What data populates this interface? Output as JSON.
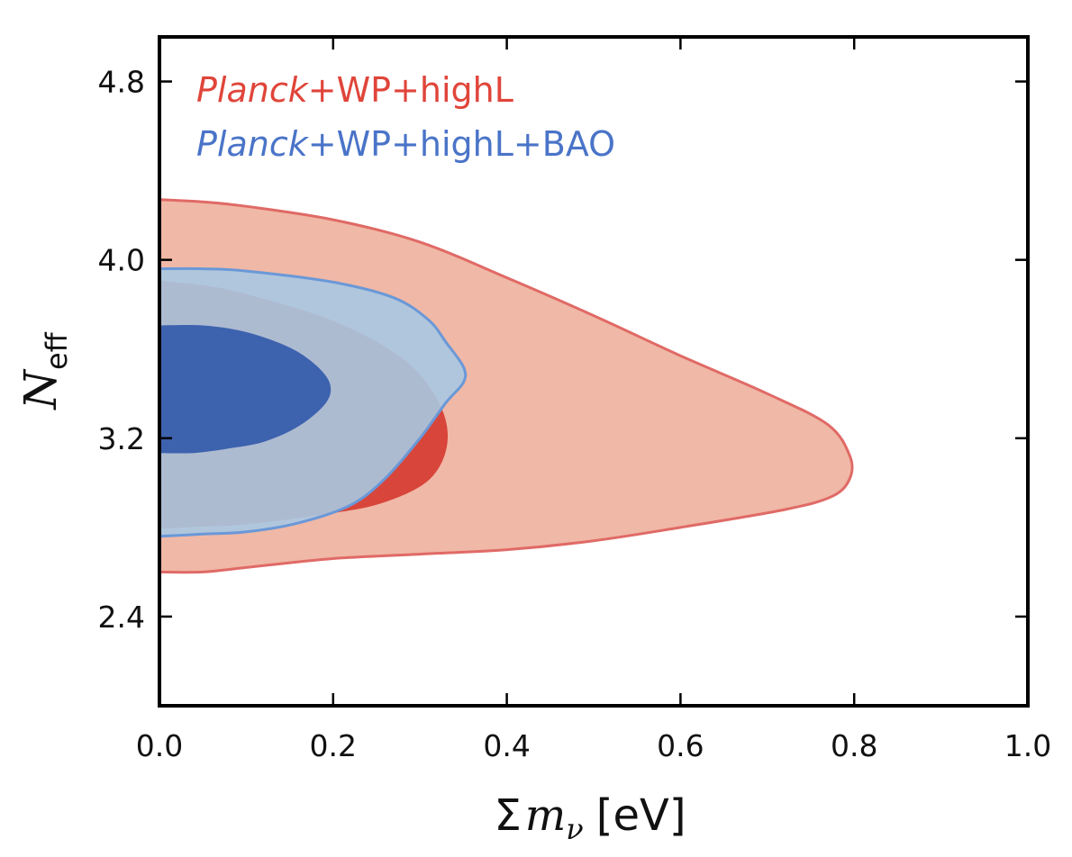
{
  "chart_data": {
    "type": "contour",
    "xlim": [
      0.0,
      1.0
    ],
    "ylim": [
      2.0,
      5.0
    ],
    "xticks": [
      0.0,
      0.2,
      0.4,
      0.6,
      0.8,
      1.0
    ],
    "xtick_labels": [
      "0.0",
      "0.2",
      "0.4",
      "0.6",
      "0.8",
      "1.0"
    ],
    "yticks": [
      2.4,
      3.2,
      4.0,
      4.8
    ],
    "ytick_labels": [
      "2.4",
      "3.2",
      "4.0",
      "4.8"
    ],
    "xlabel": {
      "symbol": "Σ",
      "variable": "m",
      "subscript": "ν",
      "unit": "[eV]"
    },
    "ylabel": {
      "variable": "N",
      "subscript": "eff"
    },
    "legend_position": "top-left",
    "grid": false,
    "series": [
      {
        "name": "Planck+WP+highL",
        "name_italic": "Planck",
        "name_rest": "+WP+highL",
        "legend_color": "#e0453a",
        "contours": [
          {
            "level": "95%",
            "fill": "#f0b8a6",
            "stroke": "#e06a66",
            "points": [
              [
                0.0,
                4.27
              ],
              [
                0.05,
                4.26
              ],
              [
                0.1,
                4.24
              ],
              [
                0.2,
                4.18
              ],
              [
                0.3,
                4.08
              ],
              [
                0.4,
                3.92
              ],
              [
                0.5,
                3.75
              ],
              [
                0.6,
                3.57
              ],
              [
                0.7,
                3.4
              ],
              [
                0.77,
                3.26
              ],
              [
                0.795,
                3.12
              ],
              [
                0.795,
                3.02
              ],
              [
                0.775,
                2.94
              ],
              [
                0.72,
                2.88
              ],
              [
                0.6,
                2.8
              ],
              [
                0.5,
                2.74
              ],
              [
                0.4,
                2.7
              ],
              [
                0.3,
                2.68
              ],
              [
                0.2,
                2.66
              ],
              [
                0.1,
                2.62
              ],
              [
                0.05,
                2.6
              ],
              [
                0.0,
                2.6
              ]
            ]
          },
          {
            "level": "68%",
            "fill": "#d8453a",
            "stroke": "#d8453a",
            "points": [
              [
                0.0,
                3.9
              ],
              [
                0.05,
                3.88
              ],
              [
                0.1,
                3.84
              ],
              [
                0.2,
                3.72
              ],
              [
                0.28,
                3.55
              ],
              [
                0.32,
                3.36
              ],
              [
                0.33,
                3.18
              ],
              [
                0.31,
                3.02
              ],
              [
                0.26,
                2.92
              ],
              [
                0.2,
                2.87
              ],
              [
                0.1,
                2.82
              ],
              [
                0.05,
                2.81
              ],
              [
                0.0,
                2.8
              ]
            ]
          }
        ]
      },
      {
        "name": "Planck+WP+highL+BAO",
        "name_italic": "Planck",
        "name_rest": "+WP+highL+BAO",
        "legend_color": "#4a74c8",
        "contours": [
          {
            "level": "95%",
            "fill": "#a9c8e2",
            "fill_opacity": 0.9,
            "stroke": "#6a98d8",
            "points": [
              [
                0.0,
                3.96
              ],
              [
                0.05,
                3.96
              ],
              [
                0.1,
                3.95
              ],
              [
                0.2,
                3.9
              ],
              [
                0.27,
                3.83
              ],
              [
                0.31,
                3.73
              ],
              [
                0.33,
                3.63
              ],
              [
                0.35,
                3.52
              ],
              [
                0.35,
                3.45
              ],
              [
                0.33,
                3.36
              ],
              [
                0.3,
                3.2
              ],
              [
                0.26,
                3.02
              ],
              [
                0.22,
                2.9
              ],
              [
                0.16,
                2.82
              ],
              [
                0.1,
                2.78
              ],
              [
                0.05,
                2.77
              ],
              [
                0.0,
                2.76
              ]
            ]
          },
          {
            "level": "68%",
            "fill": "#3d62ae",
            "fill_opacity": 1.0,
            "stroke": "#3d62ae",
            "points": [
              [
                0.0,
                3.7
              ],
              [
                0.05,
                3.7
              ],
              [
                0.1,
                3.67
              ],
              [
                0.15,
                3.6
              ],
              [
                0.18,
                3.52
              ],
              [
                0.195,
                3.44
              ],
              [
                0.19,
                3.36
              ],
              [
                0.16,
                3.26
              ],
              [
                0.12,
                3.19
              ],
              [
                0.08,
                3.16
              ],
              [
                0.04,
                3.14
              ],
              [
                0.0,
                3.14
              ]
            ]
          }
        ]
      }
    ]
  }
}
